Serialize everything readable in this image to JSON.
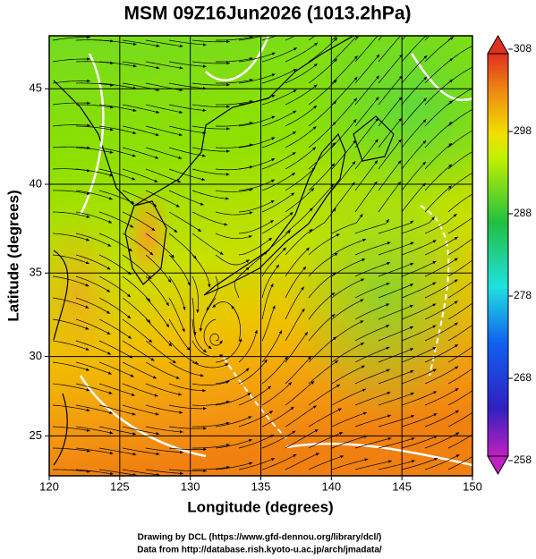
{
  "title": "MSM 09Z16Jun2026 (1013.2hPa)",
  "map": {
    "x_label": "Longitude (degrees)",
    "y_label": "Latitude  (degrees)",
    "lonlim": [
      120,
      150
    ],
    "latlim": [
      22.4,
      47.6
    ],
    "xticks": [
      120,
      125,
      130,
      135,
      140,
      145,
      150
    ],
    "yticks": [
      25,
      30,
      35,
      40,
      45
    ]
  },
  "colorbar": {
    "lim": [
      258,
      308
    ],
    "ticks": [
      258,
      268,
      278,
      288,
      298,
      308
    ]
  },
  "footer": [
    "Drawing by DCL (https://www.gfd-dennou.org/library/dcl/)",
    "Data from http://database.rish.kyoto-u.ac.jp/arch/jmadata/"
  ]
}
